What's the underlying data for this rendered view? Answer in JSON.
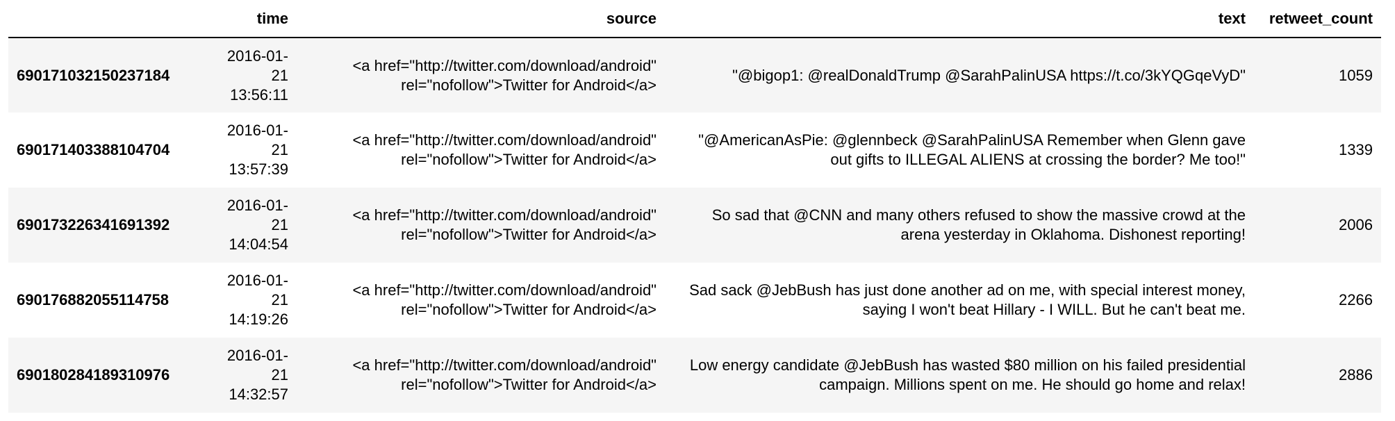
{
  "columns": {
    "index": "",
    "time": "time",
    "source": "source",
    "text": "text",
    "retweet_count": "retweet_count"
  },
  "rows": [
    {
      "id": "690171032150237184",
      "time_date": "2016-01-",
      "time_day": "21",
      "time_clock": "13:56:11",
      "source_line1": "<a href=\"http://twitter.com/download/android\"",
      "source_line2": "rel=\"nofollow\">Twitter for Android</a>",
      "text": "\"@bigop1: @realDonaldTrump @SarahPalinUSA https://t.co/3kYQGqeVyD\"",
      "retweet_count": "1059"
    },
    {
      "id": "690171403388104704",
      "time_date": "2016-01-",
      "time_day": "21",
      "time_clock": "13:57:39",
      "source_line1": "<a href=\"http://twitter.com/download/android\"",
      "source_line2": "rel=\"nofollow\">Twitter for Android</a>",
      "text": "\"@AmericanAsPie: @glennbeck @SarahPalinUSA Remember when Glenn gave out gifts to ILLEGAL ALIENS at crossing the border? Me too!\"",
      "retweet_count": "1339"
    },
    {
      "id": "690173226341691392",
      "time_date": "2016-01-",
      "time_day": "21",
      "time_clock": "14:04:54",
      "source_line1": "<a href=\"http://twitter.com/download/android\"",
      "source_line2": "rel=\"nofollow\">Twitter for Android</a>",
      "text": "So sad that @CNN and many others refused to show the massive crowd at the arena yesterday in Oklahoma. Dishonest reporting!",
      "retweet_count": "2006"
    },
    {
      "id": "690176882055114758",
      "time_date": "2016-01-",
      "time_day": "21",
      "time_clock": "14:19:26",
      "source_line1": "<a href=\"http://twitter.com/download/android\"",
      "source_line2": "rel=\"nofollow\">Twitter for Android</a>",
      "text": "Sad sack @JebBush has just done another ad on me, with special interest money, saying I won't beat Hillary - I WILL. But he can't beat me.",
      "retweet_count": "2266"
    },
    {
      "id": "690180284189310976",
      "time_date": "2016-01-",
      "time_day": "21",
      "time_clock": "14:32:57",
      "source_line1": "<a href=\"http://twitter.com/download/android\"",
      "source_line2": "rel=\"nofollow\">Twitter for Android</a>",
      "text": "Low energy candidate @JebBush has wasted $80 million on his failed presidential campaign. Millions spent on me. He should go home and relax!",
      "retweet_count": "2886"
    }
  ]
}
